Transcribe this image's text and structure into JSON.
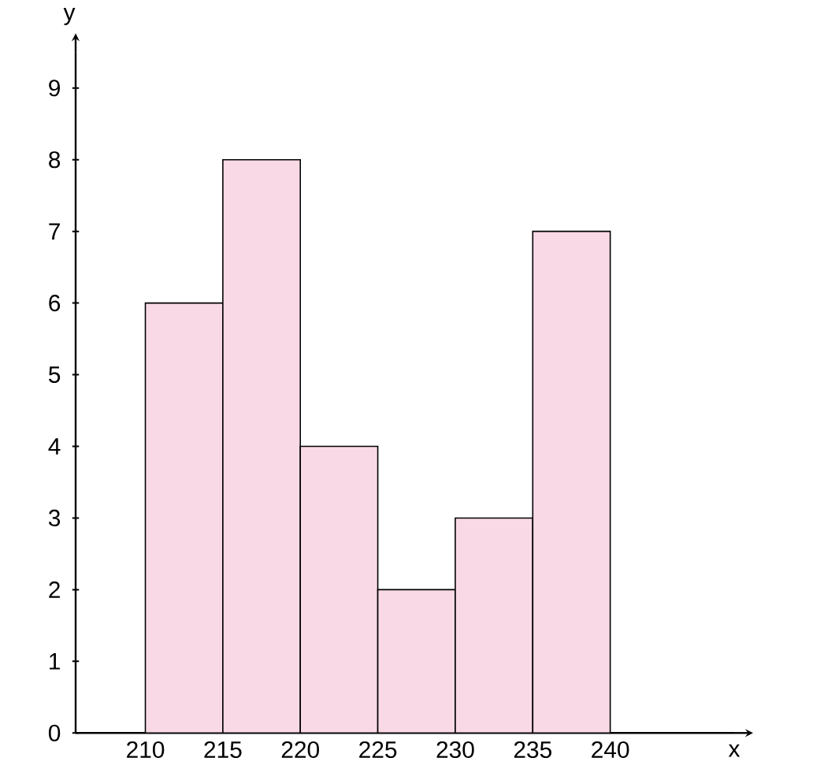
{
  "chart_data": {
    "type": "histogram",
    "xlabel": "x",
    "ylabel": "y",
    "bins": [
      210,
      215,
      220,
      225,
      230,
      235,
      240
    ],
    "values": [
      6,
      8,
      4,
      2,
      3,
      7
    ],
    "color": "#f9d9e6",
    "xlim": [
      205.5,
      248
    ],
    "ylim": [
      0,
      9.5
    ],
    "xticks": [
      210,
      215,
      220,
      225,
      230,
      235,
      240
    ],
    "yticks": [
      0,
      1,
      2,
      3,
      4,
      5,
      6,
      7,
      8,
      9
    ]
  }
}
